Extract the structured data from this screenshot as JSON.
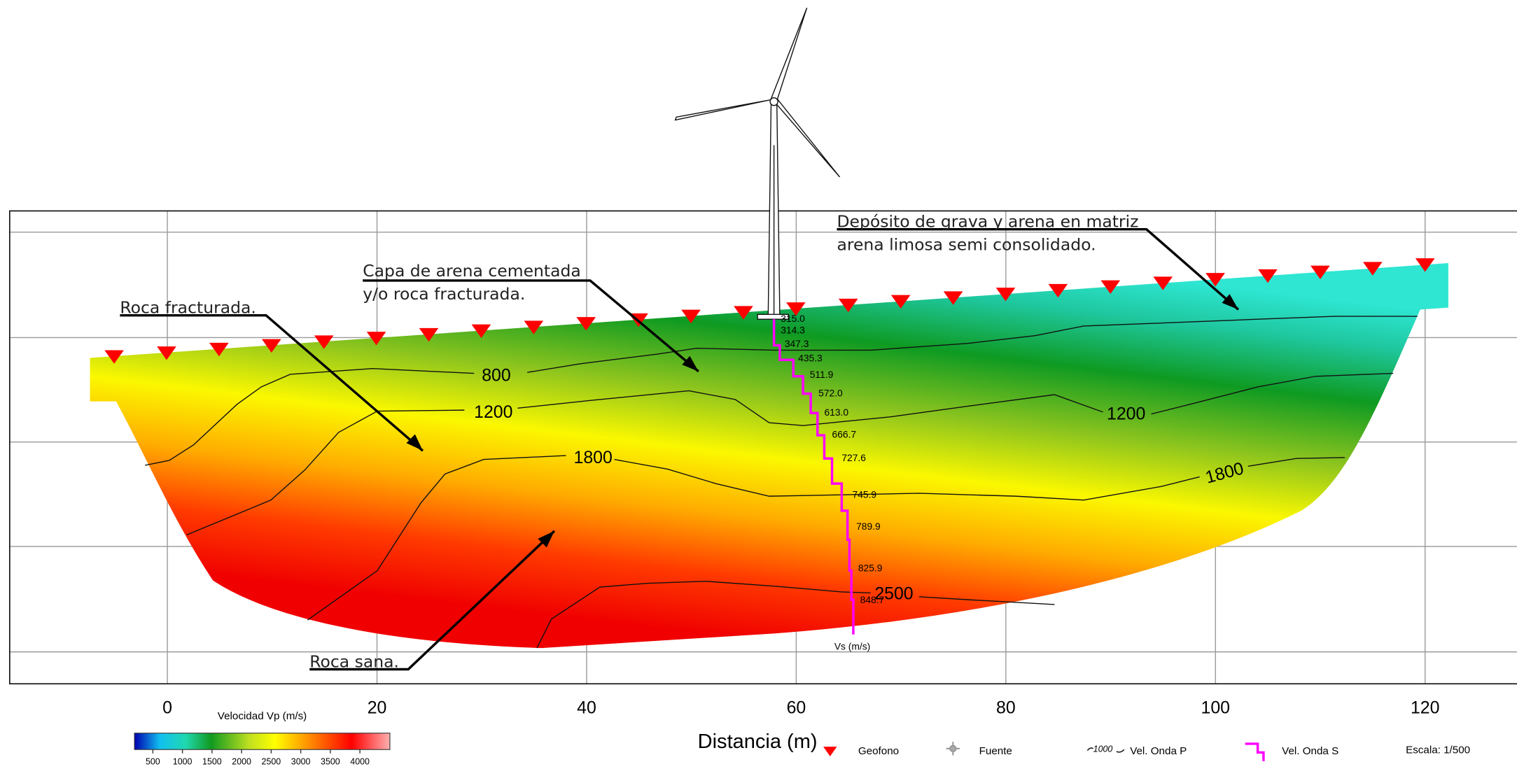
{
  "axis": {
    "label": "Distancia (m)",
    "ticks": [
      0,
      20,
      40,
      60,
      80,
      100,
      120
    ]
  },
  "annotations": [
    {
      "lines": [
        "Roca fracturada."
      ]
    },
    {
      "lines": [
        "Capa de arena cementada",
        "y/o roca fracturada."
      ]
    },
    {
      "lines": [
        "Depósito de grava y arena en matriz",
        "arena limosa semi consolidado."
      ]
    },
    {
      "lines": [
        "Roca sana."
      ]
    }
  ],
  "contour_labels": [
    "800",
    "1200",
    "1200",
    "1800",
    "1800",
    "2500"
  ],
  "vs_labels": [
    "315.0",
    "314.3",
    "347.3",
    "435.3",
    "511.9",
    "572.0",
    "613.0",
    "666.7",
    "727.6",
    "745.9",
    "789.9",
    "825.9",
    "848.7"
  ],
  "vs_title": "Vs (m/s)",
  "colorbar": {
    "title": "Velocidad Vp (m/s)",
    "ticks": [
      500,
      1000,
      1500,
      2000,
      2500,
      3000,
      3500,
      4000
    ]
  },
  "legend": {
    "items": [
      "Geofono",
      "Fuente",
      "Vel. Onda P",
      "Vel. Onda S"
    ],
    "contour_sample": "1000",
    "scale": "Escala: 1/500"
  }
}
